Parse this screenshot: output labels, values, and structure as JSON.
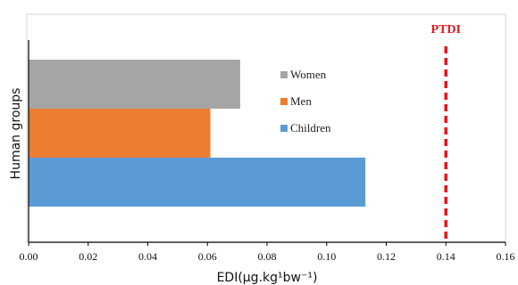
{
  "chart_data": {
    "type": "bar",
    "orientation": "horizontal",
    "title": "",
    "xlabel": "EDI(µg.kg¹bw⁻¹)",
    "ylabel": "Human groups",
    "xlim": [
      0,
      0.16
    ],
    "xticks": [
      "0.00",
      "0.02",
      "0.04",
      "0.06",
      "0.08",
      "0.10",
      "0.12",
      "0.14",
      "0.16"
    ],
    "grid": false,
    "legend_position": "inside-right",
    "series": [
      {
        "name": "Children",
        "value": 0.113,
        "color": "#5b9bd5"
      },
      {
        "name": "Men",
        "value": 0.061,
        "color": "#ed7d31"
      },
      {
        "name": "Women",
        "value": 0.071,
        "color": "#a5a5a5"
      }
    ],
    "reference_line": {
      "label": "PTDI",
      "value": 0.14,
      "color": "#e8141b",
      "style": "dashed"
    }
  }
}
